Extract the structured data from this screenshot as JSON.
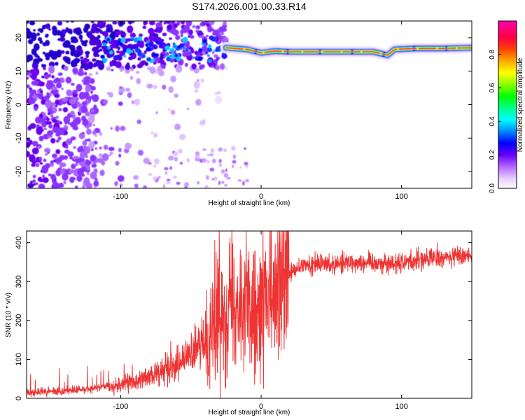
{
  "title": "S174.2026.001.00.33.R14",
  "chart_data": [
    {
      "type": "heatmap",
      "xlabel": "Height of straight line (km)",
      "ylabel": "Frequency (Hz)",
      "xlim": [
        -167,
        150
      ],
      "ylim": [
        -25,
        25
      ],
      "xticks": [
        -100,
        0,
        100
      ],
      "yticks": [
        -20,
        -10,
        0,
        10,
        20
      ],
      "colorbar": {
        "label": "Normalized spectral amplitude",
        "range": [
          0,
          1
        ],
        "ticks": [
          "0.0",
          "0.2",
          "0.4",
          "0.6",
          "0.8"
        ],
        "colors": [
          "#ffffff",
          "#e6ccff",
          "#cc99ff",
          "#9933ff",
          "#6600ff",
          "#0000ff",
          "#00aaff",
          "#00ffff",
          "#00ff66",
          "#00ff00",
          "#99ff00",
          "#ffff00",
          "#ff9900",
          "#ff0000",
          "#ff0066",
          "#ff00cc"
        ]
      },
      "features": {
        "noise_region_x": [
          -167,
          -25
        ],
        "signal_track": [
          [
            -25,
            17
          ],
          [
            -10,
            16.5
          ],
          [
            0,
            15.5
          ],
          [
            10,
            16
          ],
          [
            20,
            15.8
          ],
          [
            40,
            15.8
          ],
          [
            60,
            15.8
          ],
          [
            80,
            15.8
          ],
          [
            90,
            14.8
          ],
          [
            95,
            16.5
          ],
          [
            110,
            16.8
          ],
          [
            130,
            16.8
          ],
          [
            150,
            17
          ]
        ]
      }
    },
    {
      "type": "line",
      "xlabel": "Height of straight line (km)",
      "ylabel": "SNR (10 * v/v)",
      "xlim": [
        -167,
        150
      ],
      "ylim": [
        0,
        430
      ],
      "xticks": [
        -100,
        0,
        100
      ],
      "yticks": [
        0,
        100,
        200,
        300,
        400
      ],
      "series": [
        {
          "name": "SNR",
          "color": "#ee3333",
          "x": [
            -167,
            -150,
            -130,
            -110,
            -100,
            -90,
            -80,
            -70,
            -60,
            -50,
            -45,
            -40,
            -35,
            -30,
            -25,
            -20,
            -15,
            -10,
            -5,
            0,
            5,
            10,
            15,
            20,
            30,
            40,
            50,
            60,
            80,
            90,
            100,
            110,
            120,
            130,
            140,
            150
          ],
          "values": [
            15,
            17,
            22,
            28,
            35,
            42,
            55,
            70,
            90,
            110,
            125,
            150,
            190,
            220,
            240,
            245,
            255,
            230,
            220,
            240,
            260,
            240,
            300,
            320,
            340,
            345,
            345,
            350,
            350,
            345,
            350,
            355,
            360,
            360,
            365,
            370
          ]
        }
      ]
    }
  ]
}
